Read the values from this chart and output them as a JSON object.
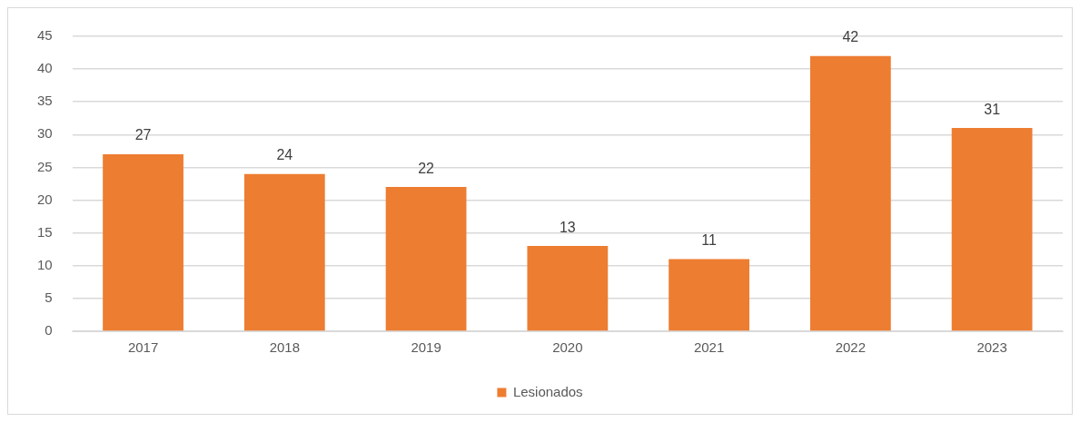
{
  "chart_data": {
    "type": "bar",
    "categories": [
      "2017",
      "2018",
      "2019",
      "2020",
      "2021",
      "2022",
      "2023"
    ],
    "series": [
      {
        "name": "Lesionados",
        "color": "#ed7d31",
        "values": [
          27,
          24,
          22,
          13,
          11,
          42,
          31
        ]
      }
    ],
    "ylim": [
      0,
      45
    ],
    "yticks": [
      0,
      5,
      10,
      15,
      20,
      25,
      30,
      35,
      40,
      45
    ],
    "grid": "y",
    "legend": "bottom",
    "data_labels": true
  }
}
